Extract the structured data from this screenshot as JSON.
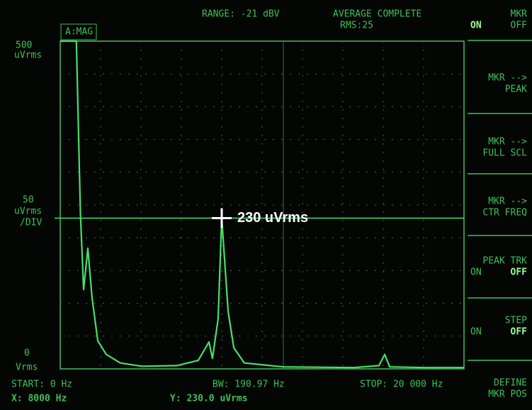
{
  "header": {
    "trace": "A:MAG",
    "range": "RANGE: -21 dBV",
    "status": "AVERAGE COMPLETE",
    "rms": "RMS:25"
  },
  "chart_data": {
    "type": "line",
    "color": "#46e06a",
    "y_top_label": "500",
    "y_top_unit": "uVrms",
    "y_scale": "50",
    "y_scale_unit": "uVrms",
    "y_scale_div": "/DIV",
    "y_bottom_label": "0",
    "y_bottom_unit": "Vrms",
    "xlim": [
      0,
      20000
    ],
    "ylim": [
      0,
      500
    ],
    "x": [
      0,
      800,
      1000,
      1158,
      1368,
      1579,
      1860,
      2280,
      2980,
      4035,
      5790,
      6840,
      7370,
      7540,
      7820,
      8000,
      8320,
      8600,
      9120,
      11050,
      14560,
      15790,
      16070,
      16320,
      18070,
      20000
    ],
    "values": [
      500,
      500,
      238,
      121,
      184,
      108,
      43,
      22,
      9,
      4,
      5,
      13,
      41,
      16,
      76,
      230,
      87,
      32,
      9,
      3,
      2,
      5,
      22,
      3,
      2,
      2
    ],
    "marker": {
      "x": 8000,
      "y": 230,
      "label": "230 uVrms"
    }
  },
  "footer": {
    "start": "START: 0 Hz",
    "bw": "BW: 190.97 Hz",
    "stop": "STOP: 20 000 Hz",
    "x_readout": "X: 8000 Hz",
    "y_readout": "Y: 230.0 uVrms"
  },
  "softkeys": [
    {
      "lines": [
        "MKR"
      ],
      "on": "ON",
      "off": "OFF"
    },
    {
      "lines": [
        "MKR -->",
        "PEAK"
      ]
    },
    {
      "lines": [
        "MKR -->",
        "FULL SCL"
      ]
    },
    {
      "lines": [
        "MKR -->",
        "CTR FREQ"
      ]
    },
    {
      "lines": [
        "PEAK TRK"
      ],
      "on": "ON",
      "off": "OFF"
    },
    {
      "lines": [
        "STEP"
      ],
      "on": "ON",
      "off": "OFF"
    },
    {
      "lines": [
        "DEFINE",
        "MKR POS"
      ]
    }
  ]
}
